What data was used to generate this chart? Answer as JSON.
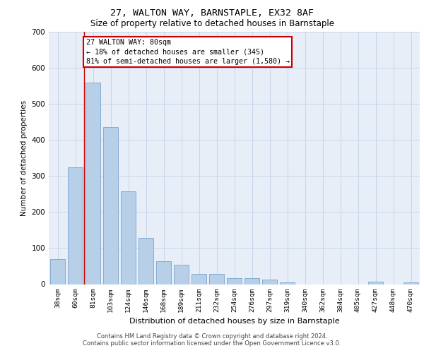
{
  "title1": "27, WALTON WAY, BARNSTAPLE, EX32 8AF",
  "title2": "Size of property relative to detached houses in Barnstaple",
  "xlabel": "Distribution of detached houses by size in Barnstaple",
  "ylabel": "Number of detached properties",
  "categories": [
    "38sqm",
    "60sqm",
    "81sqm",
    "103sqm",
    "124sqm",
    "146sqm",
    "168sqm",
    "189sqm",
    "211sqm",
    "232sqm",
    "254sqm",
    "276sqm",
    "297sqm",
    "319sqm",
    "340sqm",
    "362sqm",
    "384sqm",
    "405sqm",
    "427sqm",
    "448sqm",
    "470sqm"
  ],
  "values": [
    70,
    325,
    560,
    435,
    258,
    128,
    63,
    53,
    28,
    28,
    16,
    16,
    12,
    5,
    0,
    0,
    0,
    0,
    7,
    0,
    5
  ],
  "bar_color": "#b8cfe8",
  "bar_edge_color": "#6699cc",
  "highlight_index": 2,
  "highlight_line_color": "#cc0000",
  "annotation_text": "27 WALTON WAY: 80sqm\n← 18% of detached houses are smaller (345)\n81% of semi-detached houses are larger (1,580) →",
  "annotation_box_color": "#cc0000",
  "ylim": [
    0,
    700
  ],
  "yticks": [
    0,
    100,
    200,
    300,
    400,
    500,
    600,
    700
  ],
  "grid_color": "#c8d4e8",
  "background_color": "#e8eef8",
  "footer1": "Contains HM Land Registry data © Crown copyright and database right 2024.",
  "footer2": "Contains public sector information licensed under the Open Government Licence v3.0."
}
